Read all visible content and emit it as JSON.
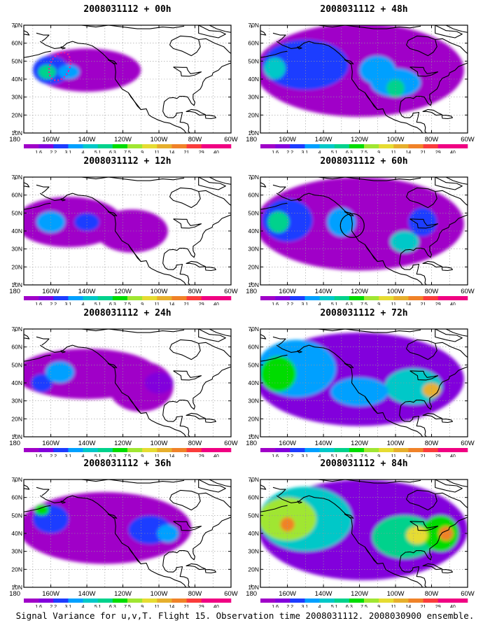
{
  "caption": "Signal Variance for u,v,T. Flight 15. Observation time 2008031112. 2008030900 ensemble.",
  "lat_labels": [
    "70N",
    "60N",
    "50N",
    "40N",
    "30N",
    "20N",
    "10N"
  ],
  "lon_labels": [
    "180",
    "160W",
    "140W",
    "120W",
    "100W",
    "80W",
    "60W"
  ],
  "colorbar_labels": [
    "1.6",
    "2.2",
    "3.1",
    "4",
    "5.1",
    "6.3",
    "7.5",
    "9",
    "11",
    "14",
    "21",
    "29",
    "40"
  ],
  "colorbar_colors": [
    "#a000c8",
    "#8200dc",
    "#1e3cff",
    "#00a0ff",
    "#00c8c8",
    "#00d28c",
    "#00dc00",
    "#a0e632",
    "#e6dc32",
    "#e6af2d",
    "#f08228",
    "#fa3c3c",
    "#f00082"
  ],
  "panels": [
    {
      "title": "2008031112 + 00h",
      "level": 0
    },
    {
      "title": "2008031112 + 48h",
      "level": 4
    },
    {
      "title": "2008031112 + 12h",
      "level": 1
    },
    {
      "title": "2008031112 + 60h",
      "level": 5
    },
    {
      "title": "2008031112 + 24h",
      "level": 2
    },
    {
      "title": "2008031112 + 72h",
      "level": 6
    },
    {
      "title": "2008031112 + 36h",
      "level": 3
    },
    {
      "title": "2008031112 + 84h",
      "level": 7
    }
  ]
}
